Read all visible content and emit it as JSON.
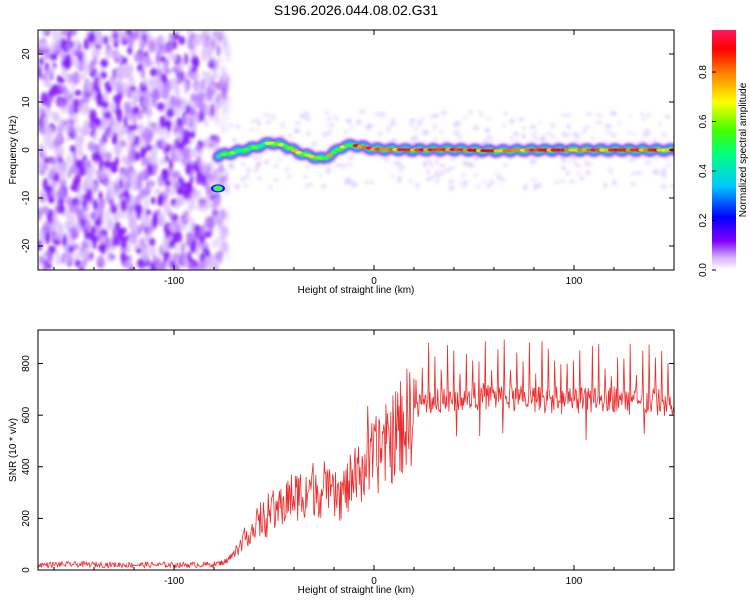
{
  "figure": {
    "title": "S196.2026.044.08.02.G31"
  },
  "chart_data": [
    {
      "type": "heatmap",
      "title": "S196.2026.044.08.02.G31",
      "xlabel": "Height of straight line (km)",
      "ylabel": "Frequency (Hz)",
      "xlim": [
        -168,
        150
      ],
      "ylim": [
        -25,
        25
      ],
      "xticks": [
        -100,
        0,
        100
      ],
      "yticks": [
        -20,
        -10,
        0,
        10,
        20
      ],
      "colorbar": {
        "label": "Normalized spectral amplitude",
        "range": [
          0,
          0.97
        ],
        "ticks": [
          0.0,
          0.2,
          0.4,
          0.6,
          0.8
        ],
        "colormap": [
          "#ffffff",
          "#d8b4fe",
          "#8000ff",
          "#0000ff",
          "#00c8ff",
          "#00ff80",
          "#40ff00",
          "#ffff00",
          "#ff8000",
          "#ff0000",
          "#ff1a60"
        ]
      },
      "ridge": {
        "description": "dominant frequency ridge vs height",
        "x": [
          -78,
          -70,
          -60,
          -52,
          -45,
          -38,
          -30,
          -25,
          -20,
          -15,
          -10,
          0,
          20,
          40,
          60,
          80,
          100,
          120,
          150
        ],
        "y": [
          -1.2,
          -0.5,
          0.5,
          1.5,
          1.0,
          -0.5,
          -1.5,
          -1.8,
          -0.5,
          0.8,
          1.0,
          0.2,
          0.0,
          0.1,
          -0.2,
          0.0,
          0.0,
          0.0,
          0.0
        ]
      },
      "noise_region_x": [
        -168,
        -72
      ],
      "grid": false
    },
    {
      "type": "line",
      "xlabel": "Height of straight line (km)",
      "ylabel": "SNR (10 * v/v)",
      "xlim": [
        -168,
        150
      ],
      "ylim": [
        0,
        930
      ],
      "xticks": [
        -100,
        0,
        100
      ],
      "yticks": [
        0,
        200,
        400,
        600,
        800
      ],
      "color": "#ee2b2b",
      "series": [
        {
          "name": "SNR",
          "x": [
            -168,
            -150,
            -130,
            -110,
            -90,
            -80,
            -75,
            -70,
            -66,
            -62,
            -58,
            -54,
            -50,
            -46,
            -42,
            -38,
            -34,
            -30,
            -26,
            -22,
            -18,
            -14,
            -10,
            -6,
            -2,
            2,
            6,
            10,
            14,
            18,
            22,
            26,
            30,
            40,
            50,
            60,
            70,
            80,
            90,
            100,
            110,
            120,
            130,
            140,
            150
          ],
          "y": [
            20,
            22,
            20,
            20,
            20,
            22,
            30,
            60,
            110,
            150,
            170,
            190,
            220,
            250,
            280,
            290,
            310,
            320,
            300,
            290,
            280,
            310,
            350,
            390,
            420,
            450,
            480,
            520,
            560,
            600,
            630,
            650,
            660,
            670,
            675,
            670,
            660,
            665,
            660,
            655,
            660,
            665,
            655,
            650,
            640
          ]
        }
      ],
      "grid": false
    }
  ]
}
